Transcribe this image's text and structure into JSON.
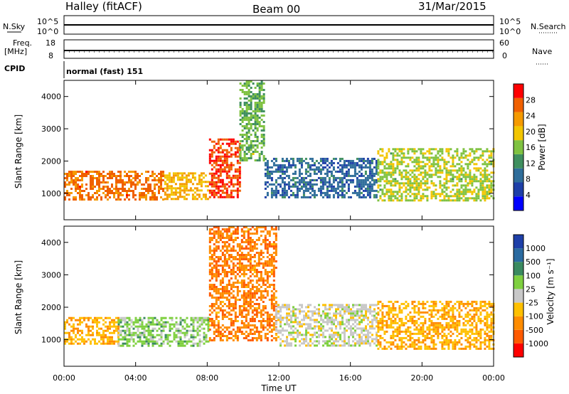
{
  "header": {
    "station": "Halley (fitACF)",
    "beam": "Beam 00",
    "date": "31/Mar/2015"
  },
  "top_panels": {
    "nsky_label": "N.Sky",
    "nsky_ticks": [
      "10^5",
      "10^0"
    ],
    "nsearch_label": "N.Search",
    "nsearch_ticks": [
      "10^5",
      "10^0"
    ],
    "freq_label_1": "Freq.",
    "freq_label_2": "[MHz]",
    "freq_ticks": [
      "18",
      "8"
    ],
    "nave_label": "Nave",
    "nave_ticks": [
      "60",
      "0"
    ],
    "cpid_label": "CPID",
    "cpid_value": "normal (fast) 151"
  },
  "axes": {
    "ylabel": "Slant Range [km]",
    "yticks": [
      "4000",
      "3000",
      "2000",
      "1000"
    ],
    "xticks": [
      "00:00",
      "04:00",
      "08:00",
      "12:00",
      "16:00",
      "20:00",
      "00:00"
    ],
    "xlabel": "Time UT"
  },
  "colorbars": {
    "power": {
      "label": "Power [dB]",
      "ticks": [
        "28",
        "24",
        "20",
        "16",
        "12",
        "8",
        "4"
      ],
      "colors": [
        "#0000ff",
        "#1e3fa8",
        "#2f6d9a",
        "#3f8f5f",
        "#7fc241",
        "#f2c500",
        "#f59a00",
        "#f06000",
        "#ff0000"
      ]
    },
    "velocity": {
      "label": "Velocity [m s⁻¹]",
      "ticks": [
        "1000",
        "500",
        "100",
        "25",
        "-25",
        "-100",
        "-500",
        "-1000"
      ],
      "colors": [
        "#ff0000",
        "#ff5a00",
        "#ff8c00",
        "#ffc000",
        "#c8c8c8",
        "#7fd040",
        "#3a8a60",
        "#2a6aa0",
        "#1e3fa8"
      ]
    }
  },
  "chart_data": [
    {
      "type": "heatmap",
      "title": "Power",
      "xlabel": "Time UT",
      "ylabel": "Slant Range [km]",
      "xlim_hours": [
        0,
        24
      ],
      "ylim_km": [
        180,
        4500
      ],
      "colorbar_label": "Power [dB]",
      "colorbar_range": [
        0,
        30
      ],
      "echo_bands": [
        {
          "t_start": 0.0,
          "t_end": 5.6,
          "range_low": 800,
          "range_high": 1700,
          "level": 24
        },
        {
          "t_start": 5.6,
          "t_end": 8.1,
          "range_low": 850,
          "range_high": 1650,
          "level": 20
        },
        {
          "t_start": 8.1,
          "t_end": 9.8,
          "range_low": 900,
          "range_high": 2700,
          "level": 26
        },
        {
          "t_start": 9.8,
          "t_end": 11.2,
          "range_low": 2000,
          "range_high": 4500,
          "level": 14
        },
        {
          "t_start": 11.2,
          "t_end": 17.5,
          "range_low": 900,
          "range_high": 2100,
          "level": 8
        },
        {
          "t_start": 17.5,
          "t_end": 24.0,
          "range_low": 800,
          "range_high": 2400,
          "level": 16
        }
      ]
    },
    {
      "type": "heatmap",
      "title": "Velocity",
      "xlabel": "Time UT",
      "ylabel": "Slant Range [km]",
      "xlim_hours": [
        0,
        24
      ],
      "ylim_km": [
        180,
        4500
      ],
      "colorbar_label": "Velocity [m s⁻¹]",
      "colorbar_range": [
        -1000,
        1000
      ],
      "echo_bands": [
        {
          "t_start": 0.0,
          "t_end": 3.0,
          "range_low": 900,
          "range_high": 1700,
          "level": -300
        },
        {
          "t_start": 3.0,
          "t_end": 8.1,
          "range_low": 800,
          "range_high": 1700,
          "level": 200
        },
        {
          "t_start": 8.1,
          "t_end": 11.8,
          "range_low": 1000,
          "range_high": 4500,
          "level": -500
        },
        {
          "t_start": 11.8,
          "t_end": 17.5,
          "range_low": 800,
          "range_high": 2100,
          "level": 0
        },
        {
          "t_start": 17.5,
          "t_end": 24.0,
          "range_low": 700,
          "range_high": 2200,
          "level": -300
        }
      ]
    }
  ]
}
